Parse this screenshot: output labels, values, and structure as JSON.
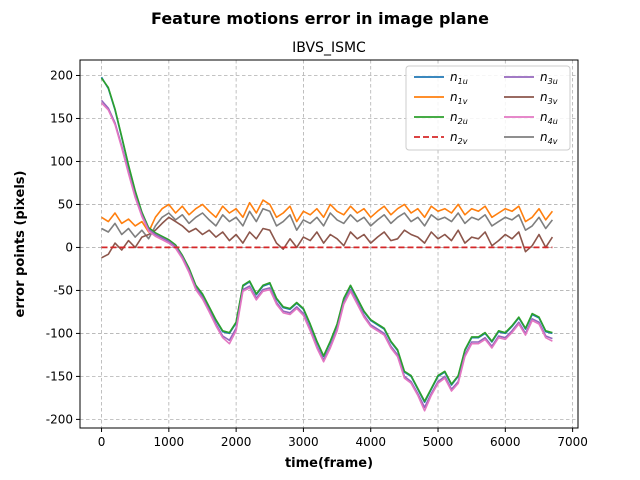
{
  "chart_data": {
    "type": "line",
    "suptitle": "Feature motions error in image plane",
    "title": "IBVS_ISMC",
    "xlabel": "time(frame)",
    "ylabel": "error points (pixels)",
    "xlim": [
      -320,
      7080
    ],
    "ylim": [
      -210,
      218
    ],
    "xticks": [
      0,
      1000,
      2000,
      3000,
      4000,
      5000,
      6000,
      7000
    ],
    "yticks": [
      -200,
      -150,
      -100,
      -50,
      0,
      50,
      100,
      150,
      200
    ],
    "grid": true,
    "legend_position": "top-right",
    "series": [
      {
        "name": "n1u",
        "base": "n",
        "sub": "1u",
        "color": "#1f77b4",
        "x": [
          0,
          100,
          200,
          300,
          400,
          500,
          600,
          700,
          800,
          900,
          1000,
          1100,
          1200,
          1300,
          1400,
          1500,
          1600,
          1700,
          1800,
          1900,
          2000,
          2100,
          2200,
          2300,
          2400,
          2500,
          2600,
          2700,
          2800,
          2900,
          3000,
          3100,
          3200,
          3300,
          3400,
          3500,
          3600,
          3700,
          3800,
          3900,
          4000,
          4100,
          4200,
          4300,
          4400,
          4500,
          4600,
          4700,
          4800,
          4900,
          5000,
          5100,
          5200,
          5300,
          5400,
          5500,
          5600,
          5700,
          5800,
          5900,
          6000,
          6100,
          6200,
          6300,
          6400,
          6500,
          6600,
          6700
        ],
        "y": [
          198,
          185,
          160,
          128,
          95,
          65,
          40,
          22,
          16,
          12,
          8,
          2,
          -10,
          -25,
          -45,
          -55,
          -70,
          -85,
          -98,
          -100,
          -88,
          -45,
          -40,
          -55,
          -45,
          -42,
          -60,
          -70,
          -72,
          -65,
          -72,
          -90,
          -110,
          -127,
          -110,
          -90,
          -60,
          -45,
          -60,
          -75,
          -85,
          -90,
          -95,
          -110,
          -120,
          -145,
          -150,
          -165,
          -180,
          -165,
          -150,
          -145,
          -160,
          -150,
          -120,
          -105,
          -105,
          -100,
          -110,
          -98,
          -100,
          -92,
          -82,
          -95,
          -78,
          -82,
          -98,
          -100
        ]
      },
      {
        "name": "n1v",
        "base": "n",
        "sub": "1v",
        "color": "#ff7f0e",
        "x": [
          0,
          100,
          200,
          300,
          400,
          500,
          600,
          700,
          800,
          900,
          1000,
          1100,
          1200,
          1300,
          1400,
          1500,
          1600,
          1700,
          1800,
          1900,
          2000,
          2100,
          2200,
          2300,
          2400,
          2500,
          2600,
          2700,
          2800,
          2900,
          3000,
          3100,
          3200,
          3300,
          3400,
          3500,
          3600,
          3700,
          3800,
          3900,
          4000,
          4100,
          4200,
          4300,
          4400,
          4500,
          4600,
          4700,
          4800,
          4900,
          5000,
          5100,
          5200,
          5300,
          5400,
          5500,
          5600,
          5700,
          5800,
          5900,
          6000,
          6100,
          6200,
          6300,
          6400,
          6500,
          6600,
          6700
        ],
        "y": [
          35,
          30,
          40,
          28,
          33,
          25,
          30,
          18,
          35,
          45,
          50,
          40,
          48,
          38,
          45,
          50,
          42,
          35,
          48,
          40,
          45,
          35,
          52,
          40,
          55,
          50,
          35,
          40,
          48,
          30,
          42,
          38,
          45,
          35,
          50,
          42,
          38,
          48,
          40,
          45,
          35,
          42,
          48,
          38,
          45,
          50,
          40,
          45,
          35,
          48,
          42,
          45,
          40,
          50,
          38,
          45,
          42,
          48,
          35,
          40,
          45,
          42,
          48,
          30,
          35,
          45,
          32,
          42
        ]
      },
      {
        "name": "n2u",
        "base": "n",
        "sub": "2u",
        "color": "#2ca02c",
        "x": [
          0,
          100,
          200,
          300,
          400,
          500,
          600,
          700,
          800,
          900,
          1000,
          1100,
          1200,
          1300,
          1400,
          1500,
          1600,
          1700,
          1800,
          1900,
          2000,
          2100,
          2200,
          2300,
          2400,
          2500,
          2600,
          2700,
          2800,
          2900,
          3000,
          3100,
          3200,
          3300,
          3400,
          3500,
          3600,
          3700,
          3800,
          3900,
          4000,
          4100,
          4200,
          4300,
          4400,
          4500,
          4600,
          4700,
          4800,
          4900,
          5000,
          5100,
          5200,
          5300,
          5400,
          5500,
          5600,
          5700,
          5800,
          5900,
          6000,
          6100,
          6200,
          6300,
          6400,
          6500,
          6600,
          6700
        ],
        "y": [
          197,
          186,
          161,
          129,
          96,
          66,
          41,
          23,
          17,
          13,
          9,
          3,
          -9,
          -24,
          -44,
          -54,
          -69,
          -84,
          -97,
          -99,
          -87,
          -44,
          -39,
          -54,
          -44,
          -41,
          -59,
          -69,
          -71,
          -64,
          -71,
          -89,
          -109,
          -126,
          -109,
          -89,
          -59,
          -44,
          -59,
          -74,
          -84,
          -89,
          -94,
          -109,
          -119,
          -144,
          -149,
          -164,
          -179,
          -164,
          -149,
          -144,
          -159,
          -149,
          -119,
          -104,
          -104,
          -99,
          -109,
          -97,
          -99,
          -91,
          -81,
          -94,
          -77,
          -81,
          -97,
          -99
        ]
      },
      {
        "name": "n2v",
        "base": "n",
        "sub": "2v",
        "color": "#d62728",
        "dashed": true,
        "x": [
          0,
          6700
        ],
        "y": [
          0,
          0
        ]
      },
      {
        "name": "n3u",
        "base": "n",
        "sub": "3u",
        "color": "#9467bd",
        "x": [
          0,
          100,
          200,
          300,
          400,
          500,
          600,
          700,
          800,
          900,
          1000,
          1100,
          1200,
          1300,
          1400,
          1500,
          1600,
          1700,
          1800,
          1900,
          2000,
          2100,
          2200,
          2300,
          2400,
          2500,
          2600,
          2700,
          2800,
          2900,
          3000,
          3100,
          3200,
          3300,
          3400,
          3500,
          3600,
          3700,
          3800,
          3900,
          4000,
          4100,
          4200,
          4300,
          4400,
          4500,
          4600,
          4700,
          4800,
          4900,
          5000,
          5100,
          5200,
          5300,
          5400,
          5500,
          5600,
          5700,
          5800,
          5900,
          6000,
          6100,
          6200,
          6300,
          6400,
          6500,
          6600,
          6700
        ],
        "y": [
          171,
          162,
          145,
          118,
          88,
          60,
          38,
          21,
          15,
          11,
          7,
          1,
          -11,
          -27,
          -47,
          -58,
          -73,
          -89,
          -103,
          -108,
          -94,
          -49,
          -45,
          -59,
          -49,
          -47,
          -64,
          -74,
          -76,
          -69,
          -77,
          -95,
          -115,
          -131,
          -115,
          -95,
          -64,
          -49,
          -64,
          -79,
          -90,
          -95,
          -100,
          -115,
          -125,
          -150,
          -156,
          -170,
          -186,
          -170,
          -156,
          -150,
          -165,
          -156,
          -125,
          -110,
          -110,
          -105,
          -115,
          -103,
          -105,
          -97,
          -87,
          -100,
          -83,
          -87,
          -103,
          -106
        ]
      },
      {
        "name": "n3v",
        "base": "n",
        "sub": "3v",
        "color": "#8c564b",
        "x": [
          0,
          100,
          200,
          300,
          400,
          500,
          600,
          700,
          800,
          900,
          1000,
          1100,
          1200,
          1300,
          1400,
          1500,
          1600,
          1700,
          1800,
          1900,
          2000,
          2100,
          2200,
          2300,
          2400,
          2500,
          2600,
          2700,
          2800,
          2900,
          3000,
          3100,
          3200,
          3300,
          3400,
          3500,
          3600,
          3700,
          3800,
          3900,
          4000,
          4100,
          4200,
          4300,
          4400,
          4500,
          4600,
          4700,
          4800,
          4900,
          5000,
          5100,
          5200,
          5300,
          5400,
          5500,
          5600,
          5700,
          5800,
          5900,
          6000,
          6100,
          6200,
          6300,
          6400,
          6500,
          6600,
          6700
        ],
        "y": [
          -12,
          -8,
          5,
          -3,
          8,
          0,
          12,
          15,
          20,
          28,
          35,
          30,
          25,
          18,
          22,
          15,
          20,
          12,
          18,
          8,
          15,
          5,
          18,
          10,
          22,
          20,
          5,
          -2,
          10,
          0,
          12,
          8,
          18,
          5,
          15,
          10,
          2,
          18,
          10,
          15,
          5,
          12,
          18,
          8,
          10,
          20,
          15,
          12,
          5,
          18,
          10,
          15,
          8,
          20,
          5,
          12,
          10,
          18,
          2,
          8,
          15,
          10,
          18,
          -5,
          2,
          15,
          0,
          12
        ]
      },
      {
        "name": "n4u",
        "base": "n",
        "sub": "4u",
        "color": "#e377c2",
        "x": [
          0,
          100,
          200,
          300,
          400,
          500,
          600,
          700,
          800,
          900,
          1000,
          1100,
          1200,
          1300,
          1400,
          1500,
          1600,
          1700,
          1800,
          1900,
          2000,
          2100,
          2200,
          2300,
          2400,
          2500,
          2600,
          2700,
          2800,
          2900,
          3000,
          3100,
          3200,
          3300,
          3400,
          3500,
          3600,
          3700,
          3800,
          3900,
          4000,
          4100,
          4200,
          4300,
          4400,
          4500,
          4600,
          4700,
          4800,
          4900,
          5000,
          5100,
          5200,
          5300,
          5400,
          5500,
          5600,
          5700,
          5800,
          5900,
          6000,
          6100,
          6200,
          6300,
          6400,
          6500,
          6600,
          6700
        ],
        "y": [
          168,
          160,
          143,
          116,
          86,
          58,
          36,
          19,
          13,
          9,
          5,
          -1,
          -13,
          -29,
          -49,
          -60,
          -75,
          -91,
          -105,
          -112,
          -97,
          -51,
          -47,
          -61,
          -51,
          -49,
          -66,
          -76,
          -78,
          -71,
          -79,
          -97,
          -117,
          -133,
          -117,
          -97,
          -66,
          -51,
          -66,
          -81,
          -92,
          -97,
          -102,
          -117,
          -127,
          -152,
          -158,
          -172,
          -190,
          -172,
          -158,
          -152,
          -167,
          -158,
          -127,
          -112,
          -112,
          -107,
          -117,
          -105,
          -107,
          -99,
          -89,
          -102,
          -85,
          -89,
          -105,
          -109
        ]
      },
      {
        "name": "n4v",
        "base": "n",
        "sub": "4v",
        "color": "#7f7f7f",
        "x": [
          0,
          100,
          200,
          300,
          400,
          500,
          600,
          700,
          800,
          900,
          1000,
          1100,
          1200,
          1300,
          1400,
          1500,
          1600,
          1700,
          1800,
          1900,
          2000,
          2100,
          2200,
          2300,
          2400,
          2500,
          2600,
          2700,
          2800,
          2900,
          3000,
          3100,
          3200,
          3300,
          3400,
          3500,
          3600,
          3700,
          3800,
          3900,
          4000,
          4100,
          4200,
          4300,
          4400,
          4500,
          4600,
          4700,
          4800,
          4900,
          5000,
          5100,
          5200,
          5300,
          5400,
          5500,
          5600,
          5700,
          5800,
          5900,
          6000,
          6100,
          6200,
          6300,
          6400,
          6500,
          6600,
          6700
        ],
        "y": [
          22,
          18,
          28,
          15,
          22,
          12,
          20,
          10,
          25,
          35,
          40,
          32,
          38,
          28,
          35,
          40,
          32,
          25,
          38,
          30,
          35,
          25,
          42,
          30,
          45,
          42,
          25,
          30,
          38,
          20,
          32,
          28,
          35,
          25,
          40,
          32,
          28,
          38,
          30,
          35,
          25,
          32,
          38,
          28,
          35,
          40,
          30,
          35,
          25,
          38,
          32,
          35,
          30,
          40,
          28,
          35,
          32,
          38,
          25,
          30,
          35,
          32,
          38,
          20,
          25,
          35,
          22,
          32
        ]
      }
    ]
  }
}
